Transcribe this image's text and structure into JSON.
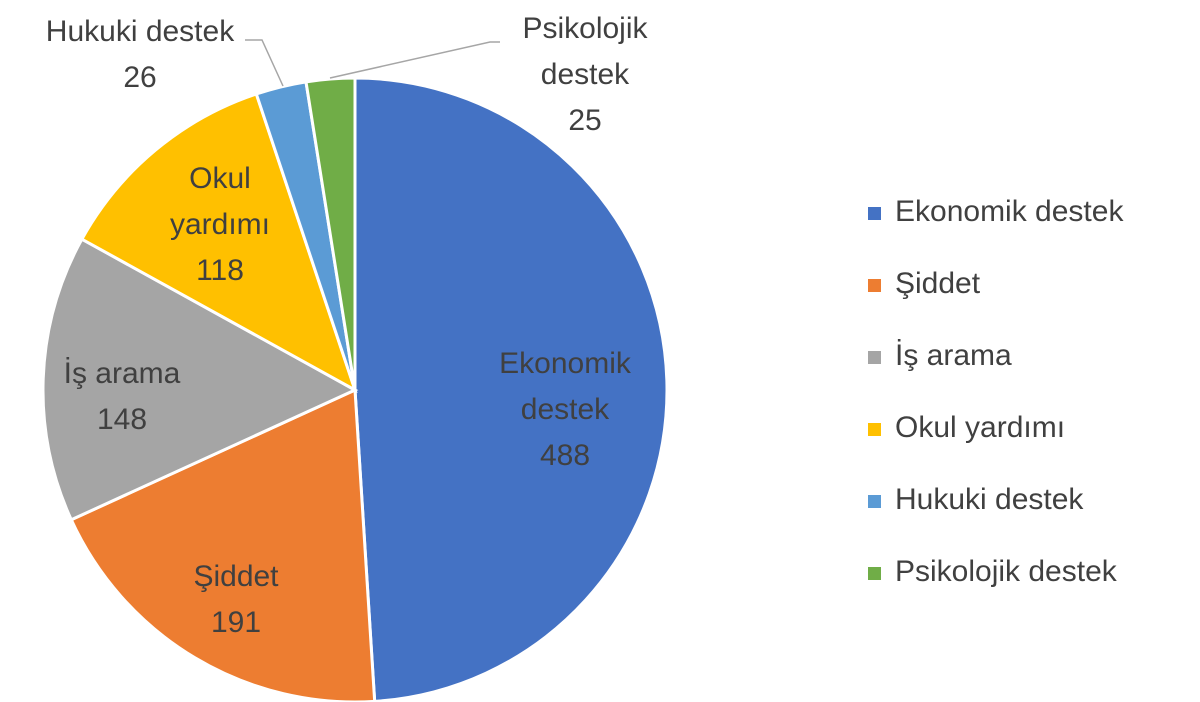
{
  "chart_data": {
    "type": "pie",
    "categories": [
      "Ekonomik destek",
      "Şiddet",
      "İş arama",
      "Okul yardımı",
      "Hukuki destek",
      "Psikolojik destek"
    ],
    "values": [
      488,
      191,
      148,
      118,
      26,
      25
    ],
    "colors": [
      "#4472c4",
      "#ed7d31",
      "#a5a5a5",
      "#ffc000",
      "#5b9bd5",
      "#70ad47"
    ],
    "legend": "right"
  }
}
